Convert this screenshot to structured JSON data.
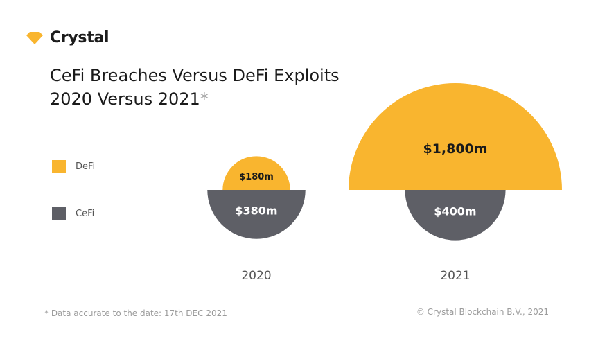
{
  "brand": {
    "name": "Crystal",
    "accent_color": "#F9B52F",
    "icon": "diamond-icon"
  },
  "title": {
    "line1": "CeFi Breaches Versus DeFi Exploits",
    "line2": "2020 Versus 2021",
    "asterisk": "*"
  },
  "legend": [
    {
      "label": "DeFi",
      "color": "#F9B52F"
    },
    {
      "label": "CeFi",
      "color": "#5E5F66"
    }
  ],
  "footnote": "* Data accurate to the date: 17th DEC 2021",
  "copyright": "© Crystal Blockchain B.V., 2021",
  "chart_data": {
    "type": "semicircle-pair",
    "title": "CeFi Breaches Versus DeFi Exploits 2020 Versus 2021",
    "unit": "$m",
    "categories": [
      "2020",
      "2021"
    ],
    "series": [
      {
        "name": "DeFi",
        "color": "#F9B52F",
        "values": [
          180,
          1800
        ],
        "labels": [
          "$180m",
          "$1,800m"
        ]
      },
      {
        "name": "CeFi",
        "color": "#5E5F66",
        "values": [
          380,
          400
        ],
        "labels": [
          "$380m",
          "$400m"
        ]
      }
    ],
    "legend_position": "left"
  }
}
